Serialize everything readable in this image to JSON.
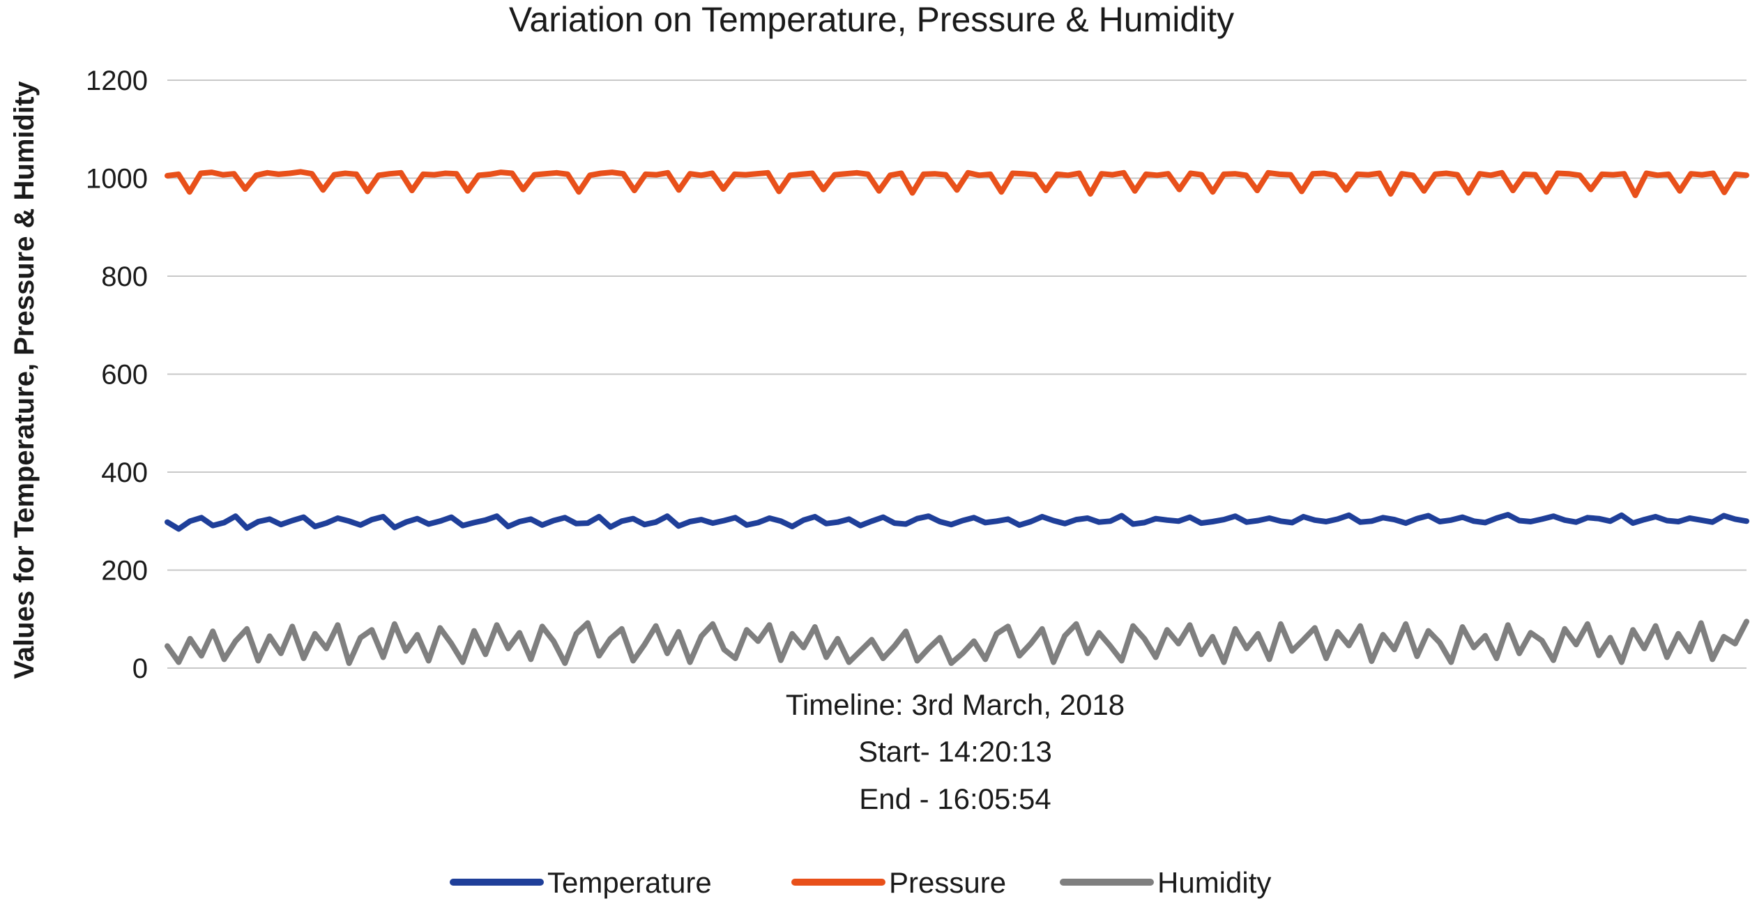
{
  "chart_data": {
    "type": "line",
    "title": "Variation on Temperature, Pressure & Humidity",
    "ylabel": "Values for Temperature, Pressure & Humidity",
    "xlabel_lines": [
      "Timeline: 3rd March, 2018",
      "Start- 14:20:13",
      "End - 16:05:54"
    ],
    "ylim": [
      0,
      1200
    ],
    "y_ticks": [
      0,
      200,
      400,
      600,
      800,
      1000,
      1200
    ],
    "y_tick_labels": [
      "0",
      "200",
      "400",
      "600",
      "800",
      "1000",
      "1200"
    ],
    "grid": "horizontal",
    "legend_position": "bottom",
    "x_start": "14:20:13",
    "x_end": "16:05:54",
    "series": [
      {
        "name": "Temperature",
        "color": "#1f3f99",
        "values": [
          298,
          284,
          300,
          307,
          291,
          297,
          310,
          286,
          299,
          304,
          293,
          301,
          308,
          289,
          296,
          306,
          300,
          292,
          303,
          309,
          287,
          298,
          305,
          294,
          300,
          308,
          291,
          297,
          302,
          310,
          289,
          299,
          304,
          292,
          301,
          307,
          295,
          296,
          309,
          288,
          300,
          305,
          293,
          298,
          310,
          290,
          299,
          303,
          296,
          301,
          307,
          292,
          297,
          306,
          300,
          289,
          302,
          309,
          295,
          298,
          304,
          291,
          300,
          308,
          296,
          294,
          305,
          310,
          299,
          293,
          301,
          307,
          297,
          300,
          304,
          292,
          299,
          309,
          301,
          295,
          303,
          306,
          298,
          300,
          311,
          294,
          297,
          305,
          302,
          300,
          308,
          296,
          299,
          303,
          310,
          298,
          301,
          306,
          300,
          297,
          309,
          302,
          299,
          304,
          312,
          298,
          300,
          307,
          303,
          296,
          305,
          311,
          299,
          302,
          308,
          300,
          297,
          306,
          313,
          301,
          299,
          304,
          310,
          302,
          298,
          307,
          305,
          300,
          312,
          296,
          303,
          309,
          301,
          299,
          306,
          302,
          298,
          311,
          304,
          300
        ]
      },
      {
        "name": "Pressure",
        "color": "#e8501a",
        "values": [
          1005,
          1008,
          972,
          1010,
          1012,
          1007,
          1009,
          978,
          1006,
          1011,
          1008,
          1010,
          1013,
          1009,
          976,
          1007,
          1010,
          1008,
          973,
          1006,
          1009,
          1011,
          975,
          1008,
          1007,
          1010,
          1009,
          974,
          1006,
          1008,
          1012,
          1010,
          977,
          1007,
          1009,
          1011,
          1008,
          972,
          1006,
          1010,
          1012,
          1009,
          975,
          1008,
          1007,
          1011,
          976,
          1009,
          1006,
          1010,
          978,
          1008,
          1007,
          1009,
          1011,
          973,
          1006,
          1008,
          1010,
          977,
          1007,
          1009,
          1011,
          1008,
          974,
          1006,
          1010,
          970,
          1008,
          1009,
          1007,
          976,
          1011,
          1006,
          1008,
          972,
          1010,
          1009,
          1007,
          975,
          1008,
          1006,
          1010,
          968,
          1009,
          1007,
          1011,
          974,
          1008,
          1006,
          1009,
          977,
          1010,
          1007,
          972,
          1008,
          1009,
          1006,
          975,
          1011,
          1008,
          1007,
          973,
          1009,
          1010,
          1006,
          976,
          1008,
          1007,
          1010,
          968,
          1009,
          1006,
          974,
          1008,
          1010,
          1007,
          970,
          1009,
          1006,
          1011,
          975,
          1008,
          1007,
          972,
          1010,
          1009,
          1006,
          977,
          1008,
          1007,
          1009,
          965,
          1010,
          1006,
          1008,
          974,
          1009,
          1007,
          1010,
          971,
          1008,
          1006
        ]
      },
      {
        "name": "Humidity",
        "color": "#7f7f7f",
        "values": [
          45,
          12,
          60,
          25,
          75,
          18,
          55,
          80,
          15,
          65,
          30,
          85,
          20,
          70,
          40,
          88,
          10,
          62,
          78,
          22,
          90,
          35,
          68,
          15,
          82,
          50,
          12,
          76,
          28,
          88,
          40,
          72,
          18,
          85,
          55,
          10,
          70,
          92,
          25,
          60,
          80,
          15,
          48,
          86,
          30,
          74,
          12,
          65,
          90,
          38,
          20,
          78,
          55,
          88,
          16,
          70,
          42,
          84,
          22,
          60,
          12,
          35,
          58,
          20,
          45,
          75,
          15,
          40,
          62,
          10,
          30,
          55,
          18,
          70,
          85,
          25,
          50,
          80,
          12,
          66,
          90,
          30,
          72,
          45,
          15,
          86,
          60,
          22,
          78,
          50,
          88,
          28,
          64,
          12,
          80,
          40,
          70,
          18,
          90,
          35,
          58,
          82,
          20,
          74,
          46,
          86,
          14,
          68,
          38,
          90,
          24,
          76,
          52,
          12,
          84,
          42,
          66,
          20,
          88,
          30,
          72,
          56,
          16,
          80,
          48,
          90,
          26,
          62,
          12,
          78,
          40,
          86,
          22,
          70,
          34,
          92,
          18,
          64,
          50,
          95
        ]
      }
    ]
  }
}
